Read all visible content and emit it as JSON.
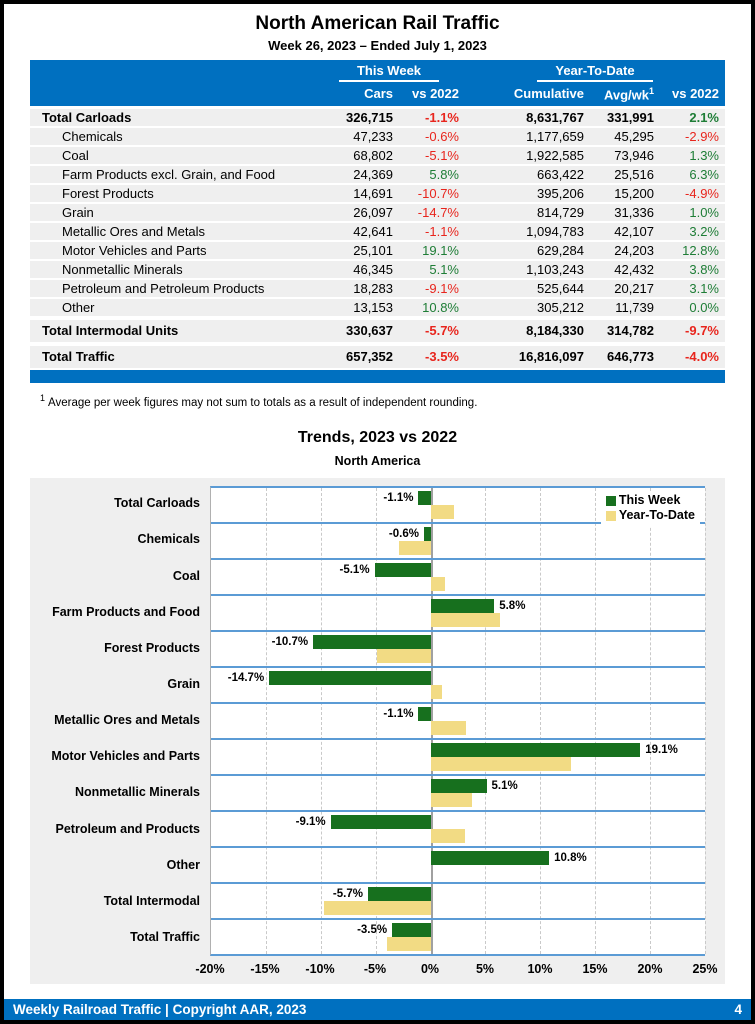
{
  "report": {
    "title": "North American Rail Traffic",
    "subtitle": "Week 26, 2023 – Ended July 1, 2023"
  },
  "table": {
    "group_headers": {
      "this_week": "This Week",
      "ytd": "Year-To-Date"
    },
    "headers": {
      "cars": "Cars",
      "cars_vs": "vs 2022",
      "cumulative": "Cumulative",
      "avg_wk": "Avg/wk",
      "avg_wk_sup": "1",
      "ytd_vs": "vs 2022"
    },
    "rows": [
      {
        "label": "Total Carloads",
        "bold": true,
        "indent": false,
        "total": false,
        "cars": "326,715",
        "cars_vs": "-1.1%",
        "cumulative": "8,631,767",
        "avg_wk": "331,991",
        "ytd_vs": "2.1%"
      },
      {
        "label": "Chemicals",
        "bold": false,
        "indent": true,
        "total": false,
        "cars": "47,233",
        "cars_vs": "-0.6%",
        "cumulative": "1,177,659",
        "avg_wk": "45,295",
        "ytd_vs": "-2.9%"
      },
      {
        "label": "Coal",
        "bold": false,
        "indent": true,
        "total": false,
        "cars": "68,802",
        "cars_vs": "-5.1%",
        "cumulative": "1,922,585",
        "avg_wk": "73,946",
        "ytd_vs": "1.3%"
      },
      {
        "label": "Farm Products excl. Grain, and Food",
        "bold": false,
        "indent": true,
        "total": false,
        "cars": "24,369",
        "cars_vs": "5.8%",
        "cumulative": "663,422",
        "avg_wk": "25,516",
        "ytd_vs": "6.3%"
      },
      {
        "label": "Forest Products",
        "bold": false,
        "indent": true,
        "total": false,
        "cars": "14,691",
        "cars_vs": "-10.7%",
        "cumulative": "395,206",
        "avg_wk": "15,200",
        "ytd_vs": "-4.9%"
      },
      {
        "label": "Grain",
        "bold": false,
        "indent": true,
        "total": false,
        "cars": "26,097",
        "cars_vs": "-14.7%",
        "cumulative": "814,729",
        "avg_wk": "31,336",
        "ytd_vs": "1.0%"
      },
      {
        "label": "Metallic Ores and Metals",
        "bold": false,
        "indent": true,
        "total": false,
        "cars": "42,641",
        "cars_vs": "-1.1%",
        "cumulative": "1,094,783",
        "avg_wk": "42,107",
        "ytd_vs": "3.2%"
      },
      {
        "label": "Motor Vehicles and Parts",
        "bold": false,
        "indent": true,
        "total": false,
        "cars": "25,101",
        "cars_vs": "19.1%",
        "cumulative": "629,284",
        "avg_wk": "24,203",
        "ytd_vs": "12.8%"
      },
      {
        "label": "Nonmetallic Minerals",
        "bold": false,
        "indent": true,
        "total": false,
        "cars": "46,345",
        "cars_vs": "5.1%",
        "cumulative": "1,103,243",
        "avg_wk": "42,432",
        "ytd_vs": "3.8%"
      },
      {
        "label": "Petroleum and Petroleum Products",
        "bold": false,
        "indent": true,
        "total": false,
        "cars": "18,283",
        "cars_vs": "-9.1%",
        "cumulative": "525,644",
        "avg_wk": "20,217",
        "ytd_vs": "3.1%"
      },
      {
        "label": "Other",
        "bold": false,
        "indent": true,
        "total": false,
        "cars": "13,153",
        "cars_vs": "10.8%",
        "cumulative": "305,212",
        "avg_wk": "11,739",
        "ytd_vs": "0.0%"
      },
      {
        "label": "Total Intermodal Units",
        "bold": true,
        "indent": false,
        "total": true,
        "cars": "330,637",
        "cars_vs": "-5.7%",
        "cumulative": "8,184,330",
        "avg_wk": "314,782",
        "ytd_vs": "-9.7%"
      },
      {
        "label": "Total Traffic",
        "bold": true,
        "indent": false,
        "total": true,
        "cars": "657,352",
        "cars_vs": "-3.5%",
        "cumulative": "16,816,097",
        "avg_wk": "646,773",
        "ytd_vs": "-4.0%"
      }
    ]
  },
  "footnote": {
    "sup": "1",
    "text": "Average per week figures may not sum to totals as a result of independent rounding."
  },
  "chart_data": {
    "type": "bar",
    "orientation": "horizontal",
    "title": "Trends, 2023 vs 2022",
    "subtitle": "North America",
    "categories": [
      "Total Carloads",
      "Chemicals",
      "Coal",
      "Farm Products and Food",
      "Forest Products",
      "Grain",
      "Metallic Ores and Metals",
      "Motor Vehicles and Parts",
      "Nonmetallic Minerals",
      "Petroleum and Products",
      "Other",
      "Total Intermodal",
      "Total Traffic"
    ],
    "series": [
      {
        "name": "This Week",
        "color": "#17701e",
        "values": [
          -1.1,
          -0.6,
          -5.1,
          5.8,
          -10.7,
          -14.7,
          -1.1,
          19.1,
          5.1,
          -9.1,
          10.8,
          -5.7,
          -3.5
        ],
        "labels": [
          "-1.1%",
          "-0.6%",
          "-5.1%",
          "5.8%",
          "-10.7%",
          "-14.7%",
          "-1.1%",
          "19.1%",
          "5.1%",
          "-9.1%",
          "10.8%",
          "-5.7%",
          "-3.5%"
        ]
      },
      {
        "name": "Year-To-Date",
        "color": "#f2db84",
        "values": [
          2.1,
          -2.9,
          1.3,
          6.3,
          -4.9,
          1.0,
          3.2,
          12.8,
          3.8,
          3.1,
          0.0,
          -9.7,
          -4.0
        ]
      }
    ],
    "xlim": [
      -20,
      25
    ],
    "ticks": [
      -20,
      -15,
      -10,
      -5,
      0,
      5,
      10,
      15,
      20,
      25
    ],
    "tick_labels": [
      "-20%",
      "-15%",
      "-10%",
      "-5%",
      "0%",
      "5%",
      "10%",
      "15%",
      "20%",
      "25%"
    ],
    "grid": "vertical-dashed",
    "legend_position": "top-right",
    "row_separator_color": "#5b9bd5"
  },
  "footer": {
    "left": "Weekly Railroad Traffic | Copyright AAR, 2023",
    "page": "4"
  }
}
